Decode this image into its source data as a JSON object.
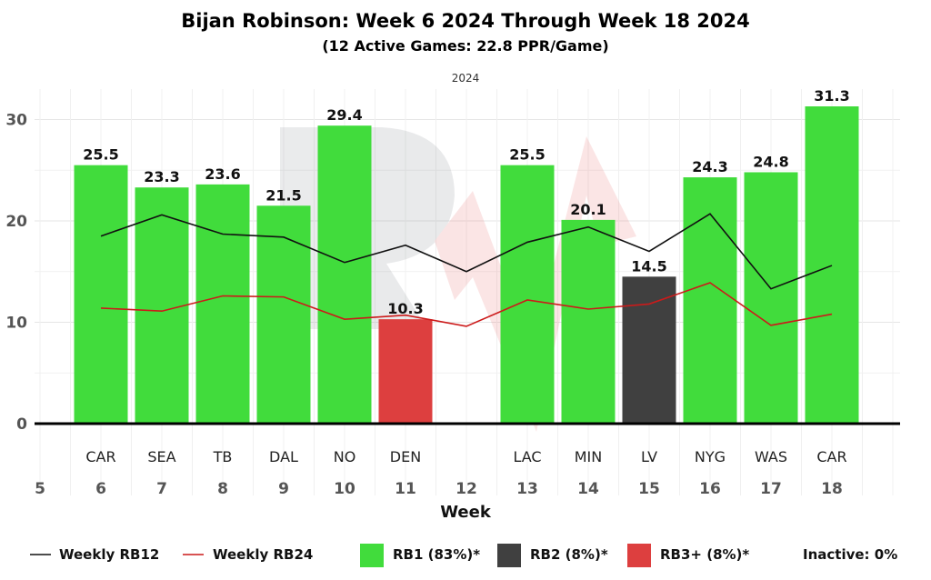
{
  "chart_data": {
    "type": "bar",
    "title": "Bijan Robinson: Week 6 2024 Through Week 18 2024",
    "subtitle": "(12 Active Games: 22.8 PPR/Game)",
    "facet_label": "2024",
    "xlabel": "Week",
    "ylabel": "",
    "ylim": [
      0,
      32.5
    ],
    "yticks": [
      0,
      10,
      20,
      30
    ],
    "x_ticks": [
      5,
      6,
      7,
      8,
      9,
      10,
      11,
      12,
      13,
      14,
      15,
      16,
      17,
      18
    ],
    "grid": true,
    "weeks": [
      6,
      7,
      8,
      9,
      10,
      11,
      12,
      13,
      14,
      15,
      16,
      17,
      18
    ],
    "opponents": [
      "CAR",
      "SEA",
      "TB",
      "DAL",
      "NO",
      "DEN",
      "",
      "LAC",
      "MIN",
      "LV",
      "NYG",
      "WAS",
      "CAR"
    ],
    "values": [
      25.5,
      23.3,
      23.6,
      21.5,
      29.4,
      10.3,
      null,
      25.5,
      20.1,
      14.5,
      24.3,
      24.8,
      31.3
    ],
    "tiers": [
      "RB1",
      "RB1",
      "RB1",
      "RB1",
      "RB1",
      "RB3+",
      null,
      "RB1",
      "RB1",
      "RB2",
      "RB1",
      "RB1",
      "RB1"
    ],
    "series": [
      {
        "name": "Weekly RB12",
        "color": "#111111",
        "values": [
          18.5,
          20.6,
          18.7,
          18.4,
          15.9,
          17.6,
          15.0,
          17.9,
          19.4,
          17.0,
          20.7,
          13.3,
          15.6
        ]
      },
      {
        "name": "Weekly RB24",
        "color": "#cc1a1a",
        "values": [
          11.4,
          11.1,
          12.6,
          12.5,
          10.3,
          10.7,
          9.6,
          12.2,
          11.3,
          11.8,
          13.9,
          9.7,
          10.8
        ]
      }
    ],
    "tier_colors": {
      "RB1": "#41dc3c",
      "RB2": "#404040",
      "RB3+": "#dd3f3f"
    },
    "legend": {
      "position": "bottom",
      "lines": [
        "Weekly RB12",
        "Weekly RB24"
      ],
      "boxes": [
        {
          "label": "RB1 (83%)*",
          "tier": "RB1"
        },
        {
          "label": "RB2 (8%)*",
          "tier": "RB2"
        },
        {
          "label": "RB3+ (8%)*",
          "tier": "RB3+"
        }
      ],
      "inactive": "Inactive: 0%"
    }
  }
}
